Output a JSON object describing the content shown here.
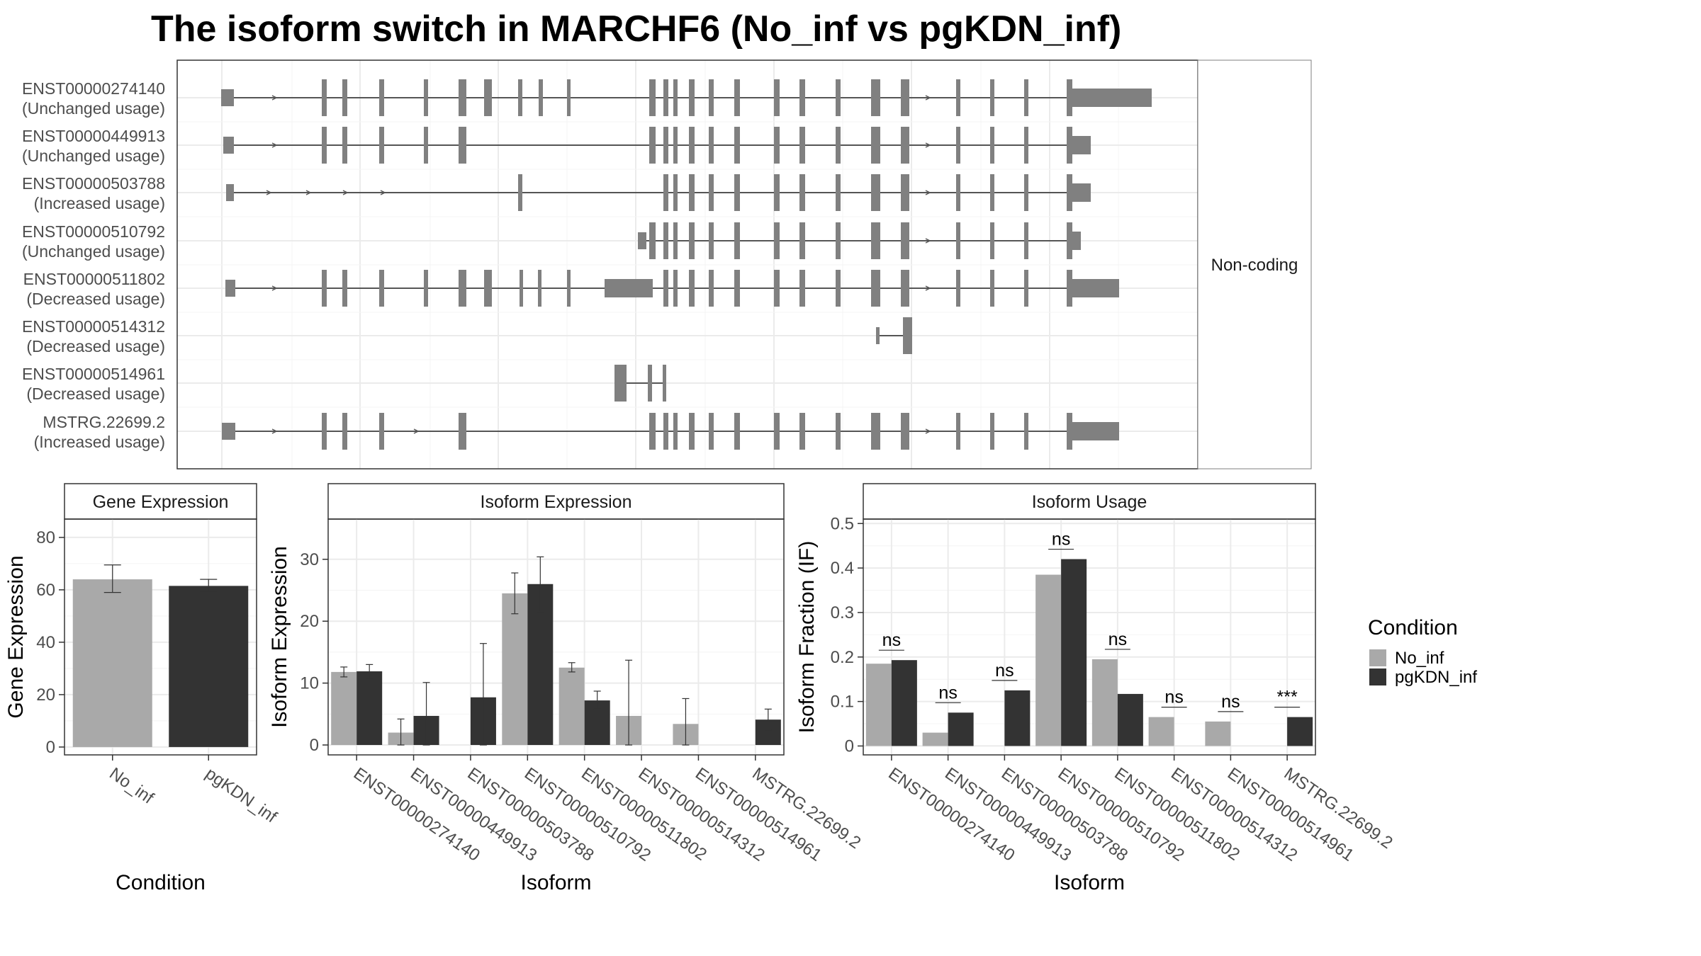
{
  "title": "The isoform switch in MARCHF6 (No_inf vs pgKDN_inf)",
  "structure_panel": {
    "strip_label": "Non-coding",
    "isoforms": [
      {
        "id": "ENST00000274140",
        "usage": "(Unchanged usage)"
      },
      {
        "id": "ENST00000449913",
        "usage": "(Unchanged usage)"
      },
      {
        "id": "ENST00000503788",
        "usage": "(Increased usage)"
      },
      {
        "id": "ENST00000510792",
        "usage": "(Unchanged usage)"
      },
      {
        "id": "ENST00000511802",
        "usage": "(Decreased usage)"
      },
      {
        "id": "ENST00000514312",
        "usage": "(Decreased usage)"
      },
      {
        "id": "ENST00000514961",
        "usage": "(Decreased usage)"
      },
      {
        "id": "MSTRG.22699.2",
        "usage": "(Increased usage)"
      }
    ]
  },
  "legend": {
    "title": "Condition",
    "items": [
      {
        "label": "No_inf",
        "color": "#a9a9a9"
      },
      {
        "label": "pgKDN_inf",
        "color": "#333333"
      }
    ]
  },
  "chart_data": [
    {
      "type": "bar",
      "title": "Gene Expression",
      "xlabel": "Condition",
      "ylabel": "Gene Expression",
      "categories": [
        "No_inf",
        "pgKDN_inf"
      ],
      "values": [
        64,
        61.5
      ],
      "errors": [
        [
          59,
          69.5
        ],
        [
          59.5,
          64
        ]
      ],
      "colors": [
        "#a9a9a9",
        "#333333"
      ],
      "ylim": [
        -3,
        87
      ],
      "yticks": [
        0,
        20,
        40,
        60,
        80
      ]
    },
    {
      "type": "bar",
      "title": "Isoform Expression",
      "xlabel": "Isoform",
      "ylabel": "Isoform Expression",
      "categories": [
        "ENST00000274140",
        "ENST00000449913",
        "ENST00000503788",
        "ENST00000510792",
        "ENST00000511802",
        "ENST00000514312",
        "ENST00000514961",
        "MSTRG.22699.2"
      ],
      "series": [
        {
          "name": "No_inf",
          "values": [
            11.8,
            2.0,
            0,
            24.5,
            12.5,
            4.7,
            3.4,
            0
          ],
          "errors": [
            [
              11,
              12.6
            ],
            [
              0,
              4.2
            ],
            null,
            [
              21.2,
              27.8
            ],
            [
              11.8,
              13.3
            ],
            [
              0,
              13.7
            ],
            [
              0,
              7.5
            ],
            null
          ]
        },
        {
          "name": "pgKDN_inf",
          "values": [
            11.9,
            4.7,
            7.7,
            26.0,
            7.2,
            0,
            0,
            4.1
          ],
          "errors": [
            [
              10.8,
              13.0
            ],
            [
              0,
              10.1
            ],
            [
              0,
              16.4
            ],
            [
              21.5,
              30.4
            ],
            [
              5.8,
              8.7
            ],
            null,
            null,
            [
              2.4,
              5.8
            ]
          ]
        }
      ],
      "ylim": [
        -1.6,
        36.5
      ],
      "yticks": [
        0,
        10,
        20,
        30
      ]
    },
    {
      "type": "bar",
      "title": "Isoform Usage",
      "xlabel": "Isoform",
      "ylabel": "Isoform Fraction (IF)",
      "categories": [
        "ENST00000274140",
        "ENST00000449913",
        "ENST00000503788",
        "ENST00000510792",
        "ENST00000511802",
        "ENST00000514312",
        "ENST00000514961",
        "MSTRG.22699.2"
      ],
      "series": [
        {
          "name": "No_inf",
          "values": [
            0.185,
            0.03,
            0,
            0.385,
            0.195,
            0.065,
            0.055,
            0
          ]
        },
        {
          "name": "pgKDN_inf",
          "values": [
            0.193,
            0.075,
            0.125,
            0.42,
            0.117,
            0,
            0,
            0.065
          ]
        }
      ],
      "significance": [
        "ns",
        "ns",
        "ns",
        "ns",
        "ns",
        "ns",
        "ns",
        "***"
      ],
      "ylim": [
        -0.02,
        0.51
      ],
      "yticks": [
        0.0,
        0.1,
        0.2,
        0.3,
        0.4,
        0.5
      ]
    }
  ]
}
